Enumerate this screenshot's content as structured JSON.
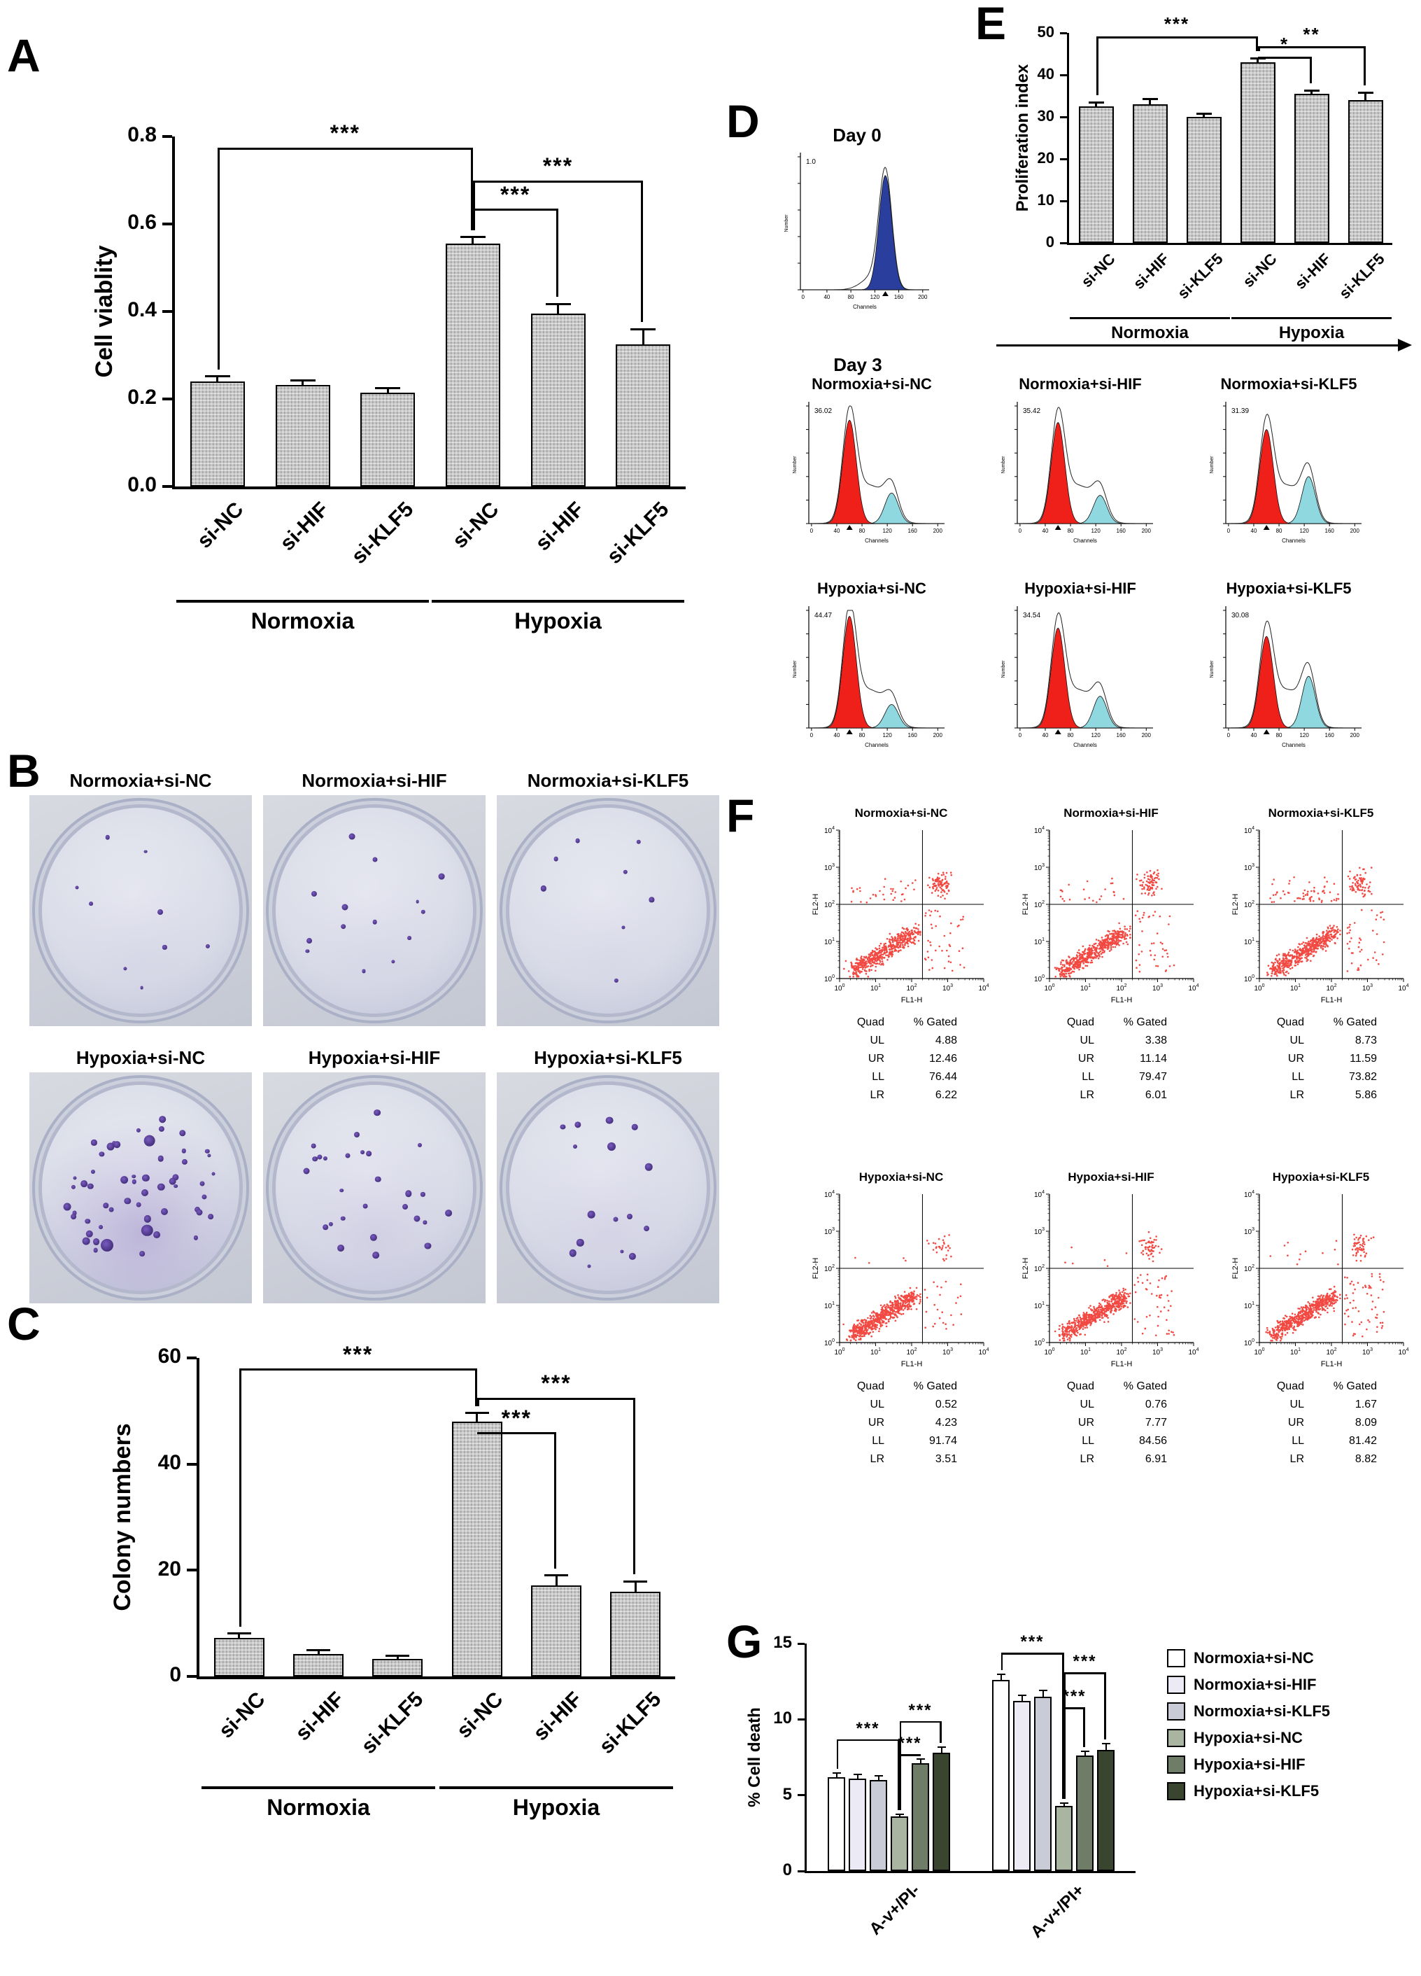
{
  "colors": {
    "bar_fill": "#c6c6c6",
    "hist_red": "#ee2019",
    "hist_cyan": "#8fd8e0",
    "hist_blue": "#2a3f9d",
    "scatter_red": "#f01c14",
    "colony_purple": "#5b3fa8"
  },
  "panelA": {
    "letter": "A",
    "chart_data": {
      "type": "bar",
      "ylabel": "Cell viablity",
      "ylim": [
        0,
        0.8
      ],
      "yticks": [
        "0.0",
        "0.2",
        "0.4",
        "0.6",
        "0.8"
      ],
      "categories": [
        "si-NC",
        "si-HIF",
        "si-KLF5",
        "si-NC",
        "si-HIF",
        "si-KLF5"
      ],
      "values": [
        0.24,
        0.232,
        0.215,
        0.555,
        0.395,
        0.325
      ],
      "errors": [
        0.012,
        0.011,
        0.01,
        0.015,
        0.022,
        0.035
      ],
      "groups": [
        {
          "label": "Normoxia",
          "span": [
            0,
            2
          ]
        },
        {
          "label": "Hypoxia",
          "span": [
            3,
            5
          ]
        }
      ],
      "significance": [
        {
          "from": 0,
          "to": 3,
          "label": "***",
          "y": 0.775
        },
        {
          "from": 3,
          "to": 5,
          "label": "***",
          "y": 0.7
        },
        {
          "from": 3,
          "to": 4,
          "label": "***",
          "y": 0.635
        }
      ]
    }
  },
  "panelB": {
    "letter": "B",
    "dishes": [
      {
        "label": "Normoxia+si-NC",
        "colonies": 9
      },
      {
        "label": "Normoxia+si-HIF",
        "colonies": 14
      },
      {
        "label": "Normoxia+si-KLF5",
        "colonies": 8
      },
      {
        "label": "Hypoxia+si-NC",
        "colonies": 55
      },
      {
        "label": "Hypoxia+si-HIF",
        "colonies": 27
      },
      {
        "label": "Hypoxia+si-KLF5",
        "colonies": 16
      }
    ]
  },
  "panelC": {
    "letter": "C",
    "chart_data": {
      "type": "bar",
      "ylabel": "Colony numbers",
      "ylim": [
        0,
        60
      ],
      "yticks": [
        "0",
        "20",
        "40",
        "60"
      ],
      "categories": [
        "si-NC",
        "si-HIF",
        "si-KLF5",
        "si-NC",
        "si-HIF",
        "si-KLF5"
      ],
      "values": [
        7.3,
        4.2,
        3.3,
        48,
        17.2,
        16
      ],
      "errors": [
        0.8,
        0.7,
        0.6,
        1.6,
        1.8,
        1.9
      ],
      "groups": [
        {
          "label": "Normoxia",
          "span": [
            0,
            2
          ]
        },
        {
          "label": "Hypoxia",
          "span": [
            3,
            5
          ]
        }
      ],
      "significance": [
        {
          "from": 0,
          "to": 3,
          "label": "***",
          "y": 58
        },
        {
          "from": 3,
          "to": 5,
          "label": "***",
          "y": 52.5
        },
        {
          "from": 3,
          "to": 4,
          "label": "***",
          "y": 46
        }
      ]
    }
  },
  "panelD": {
    "letter": "D",
    "day0": {
      "title": "Day 0",
      "annotation": "1.0"
    },
    "day3_label": "Day 3",
    "xlabel": "Channels",
    "ylabel": "Number",
    "channel_ticks": [
      "0",
      "40",
      "80",
      "120",
      "160",
      "200"
    ],
    "histograms": [
      {
        "title": "Normoxia+si-NC",
        "annotation": "36.02"
      },
      {
        "title": "Normoxia+si-HIF",
        "annotation": "35.42"
      },
      {
        "title": "Normoxia+si-KLF5",
        "annotation": "31.39"
      },
      {
        "title": "Hypoxia+si-NC",
        "annotation": "44.47"
      },
      {
        "title": "Hypoxia+si-HIF",
        "annotation": "34.54"
      },
      {
        "title": "Hypoxia+si-KLF5",
        "annotation": "30.08"
      }
    ]
  },
  "panelE": {
    "letter": "E",
    "chart_data": {
      "type": "bar",
      "ylabel": "Proliferation index",
      "ylim": [
        0,
        50
      ],
      "yticks": [
        "0",
        "10",
        "20",
        "30",
        "40",
        "50"
      ],
      "categories": [
        "si-NC",
        "si-HIF",
        "si-KLF5",
        "si-NC",
        "si-HIF",
        "si-KLF5"
      ],
      "values": [
        32.5,
        33,
        30,
        43,
        35.5,
        34
      ],
      "errors": [
        1.0,
        1.2,
        0.8,
        1.0,
        0.8,
        1.8
      ],
      "groups": [
        {
          "label": "Normoxia",
          "span": [
            0,
            2
          ]
        },
        {
          "label": "Hypoxia",
          "span": [
            3,
            5
          ]
        }
      ],
      "significance": [
        {
          "from": 0,
          "to": 3,
          "label": "***",
          "y": 49.2
        },
        {
          "from": 3,
          "to": 5,
          "label": "**",
          "y": 46.8
        },
        {
          "from": 3,
          "to": 4,
          "label": "*",
          "y": 44.4
        }
      ]
    }
  },
  "panelF": {
    "letter": "F",
    "xlabel": "FL1-H",
    "ylabel": "FL2-H",
    "axis_base": "10",
    "axis_exponents": [
      "0",
      "1",
      "2",
      "3",
      "4"
    ],
    "table_header": [
      "Quad",
      "% Gated"
    ],
    "plots": [
      {
        "title": "Normoxia+si-NC",
        "quads": [
          [
            "UL",
            "4.88"
          ],
          [
            "UR",
            "12.46"
          ],
          [
            "LL",
            "76.44"
          ],
          [
            "LR",
            "6.22"
          ]
        ]
      },
      {
        "title": "Normoxia+si-HIF",
        "quads": [
          [
            "UL",
            "3.38"
          ],
          [
            "UR",
            "11.14"
          ],
          [
            "LL",
            "79.47"
          ],
          [
            "LR",
            "6.01"
          ]
        ]
      },
      {
        "title": "Normoxia+si-KLF5",
        "quads": [
          [
            "UL",
            "8.73"
          ],
          [
            "UR",
            "11.59"
          ],
          [
            "LL",
            "73.82"
          ],
          [
            "LR",
            "5.86"
          ]
        ]
      },
      {
        "title": "Hypoxia+si-NC",
        "quads": [
          [
            "UL",
            "0.52"
          ],
          [
            "UR",
            "4.23"
          ],
          [
            "LL",
            "91.74"
          ],
          [
            "LR",
            "3.51"
          ]
        ]
      },
      {
        "title": "Hypoxia+si-HIF",
        "quads": [
          [
            "UL",
            "0.76"
          ],
          [
            "UR",
            "7.77"
          ],
          [
            "LL",
            "84.56"
          ],
          [
            "LR",
            "6.91"
          ]
        ]
      },
      {
        "title": "Hypoxia+si-KLF5",
        "quads": [
          [
            "UL",
            "1.67"
          ],
          [
            "UR",
            "8.09"
          ],
          [
            "LL",
            "81.42"
          ],
          [
            "LR",
            "8.82"
          ]
        ]
      }
    ]
  },
  "panelG": {
    "letter": "G",
    "chart_data": {
      "type": "bar",
      "ylabel": "% Cell death",
      "ylim": [
        0,
        15
      ],
      "yticks": [
        "0",
        "5",
        "10",
        "15"
      ],
      "categories": [
        "A-v+/PI-",
        "A-v+/PI+"
      ],
      "series": [
        {
          "name": "Normoxia+si-NC",
          "color": "#ffffff",
          "values": [
            6.2,
            12.6
          ],
          "errors": [
            0.25,
            0.35
          ]
        },
        {
          "name": "Normoxia+si-HIF",
          "color": "#eceaf4",
          "values": [
            6.1,
            11.2
          ],
          "errors": [
            0.25,
            0.4
          ]
        },
        {
          "name": "Normoxia+si-KLF5",
          "color": "#c9cbd6",
          "values": [
            6.0,
            11.5
          ],
          "errors": [
            0.3,
            0.4
          ]
        },
        {
          "name": "Hypoxia+si-NC",
          "color": "#a9b5a0",
          "values": [
            3.6,
            4.3
          ],
          "errors": [
            0.15,
            0.2
          ]
        },
        {
          "name": "Hypoxia+si-HIF",
          "color": "#6f7d68",
          "values": [
            7.1,
            7.6
          ],
          "errors": [
            0.3,
            0.3
          ]
        },
        {
          "name": "Hypoxia+si-KLF5",
          "color": "#39452f",
          "values": [
            7.8,
            8.0
          ],
          "errors": [
            0.35,
            0.4
          ]
        }
      ],
      "significance": [
        {
          "cat": 0,
          "from": 0,
          "to": 3,
          "label": "***",
          "y": 8.7
        },
        {
          "cat": 0,
          "from": 3,
          "to": 5,
          "label": "***",
          "y": 9.9
        },
        {
          "cat": 0,
          "from": 3,
          "to": 4,
          "label": "***",
          "y": 7.7
        },
        {
          "cat": 1,
          "from": 0,
          "to": 3,
          "label": "***",
          "y": 14.4
        },
        {
          "cat": 1,
          "from": 3,
          "to": 5,
          "label": "***",
          "y": 13.1
        },
        {
          "cat": 1,
          "from": 3,
          "to": 4,
          "label": "***",
          "y": 10.8
        }
      ]
    }
  }
}
